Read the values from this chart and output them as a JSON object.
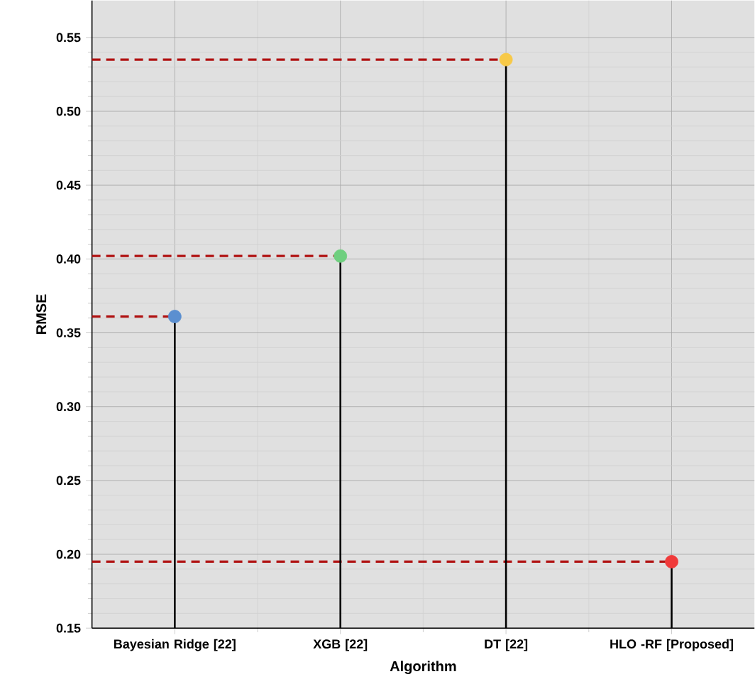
{
  "chart_data": {
    "type": "lollipop",
    "xlabel": "Algorithm",
    "ylabel": "RMSE",
    "categories": [
      "Bayesian Ridge [22]",
      "XGB [22]",
      "DT [22]",
      "HLO -RF [Proposed]"
    ],
    "values": [
      0.361,
      0.402,
      0.535,
      0.195
    ],
    "colors": [
      "#5b8fd0",
      "#6fcf7f",
      "#f7c948",
      "#f03a3a"
    ],
    "ylim": [
      0.15,
      0.575
    ],
    "yticks": [
      {
        "value": 0.15,
        "label": "0.15"
      },
      {
        "value": 0.2,
        "label": "0.20"
      },
      {
        "value": 0.25,
        "label": "0.25"
      },
      {
        "value": 0.3,
        "label": "0.30"
      },
      {
        "value": 0.35,
        "label": "0.35"
      },
      {
        "value": 0.4,
        "label": "0.40"
      },
      {
        "value": 0.45,
        "label": "0.45"
      },
      {
        "value": 0.5,
        "label": "0.50"
      },
      {
        "value": 0.55,
        "label": "0.55"
      }
    ],
    "grid": true,
    "marker": "circle",
    "ref_lines": [
      {
        "axis": "y",
        "value": 0.361,
        "color": "#b01010",
        "line_style": "dashed"
      },
      {
        "axis": "y",
        "value": 0.402,
        "color": "#b01010",
        "line_style": "dashed"
      },
      {
        "axis": "y",
        "value": 0.535,
        "color": "#b01010",
        "line_style": "dashed"
      },
      {
        "axis": "y",
        "value": 0.195,
        "color": "#b01010",
        "line_style": "dashed"
      }
    ]
  }
}
